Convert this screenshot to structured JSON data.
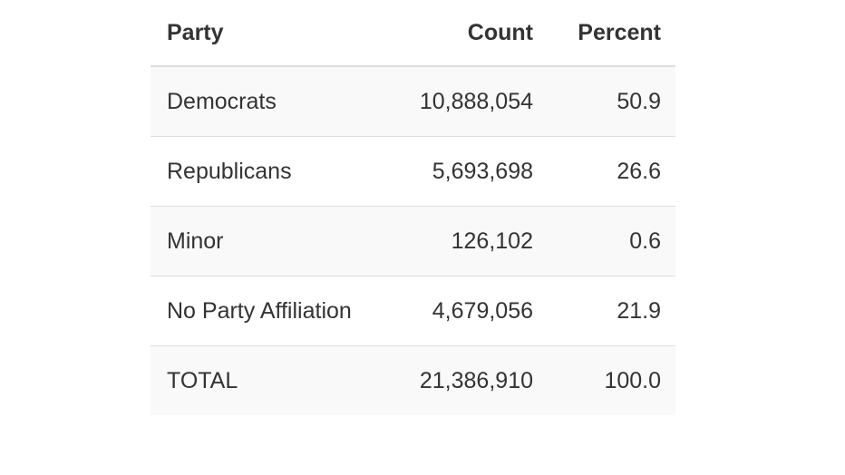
{
  "table": {
    "headers": {
      "party": "Party",
      "count": "Count",
      "percent": "Percent"
    },
    "rows": [
      {
        "party": "Democrats",
        "count": "10,888,054",
        "percent": "50.9"
      },
      {
        "party": "Republicans",
        "count": "5,693,698",
        "percent": "26.6"
      },
      {
        "party": "Minor",
        "count": "126,102",
        "percent": "0.6"
      },
      {
        "party": "No Party Affiliation",
        "count": "4,679,056",
        "percent": "21.9"
      },
      {
        "party": "TOTAL",
        "count": "21,386,910",
        "percent": "100.0"
      }
    ],
    "colors": {
      "text": "#333333",
      "stripe": "#f9f9f9",
      "border": "#dddddd"
    }
  }
}
